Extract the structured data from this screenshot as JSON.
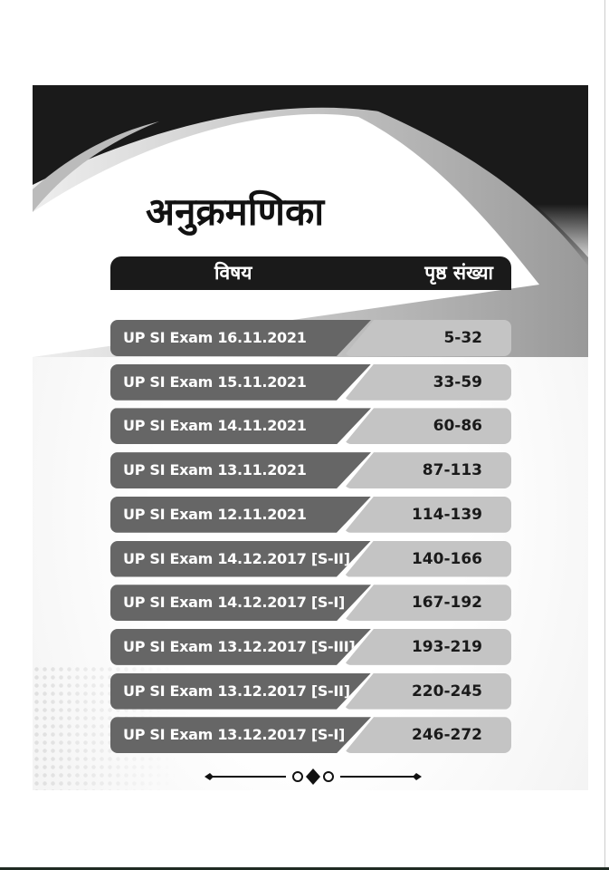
{
  "title": "अनुक्रमणिका",
  "header": {
    "subject": "विषय",
    "pages": "पृष्ठ संख्या"
  },
  "rows": [
    {
      "label": "UP SI Exam 16.11.2021",
      "pages": "5-32"
    },
    {
      "label": "UP SI Exam 15.11.2021",
      "pages": "33-59"
    },
    {
      "label": "UP SI Exam 14.11.2021",
      "pages": "60-86"
    },
    {
      "label": "UP SI Exam 13.11.2021",
      "pages": "87-113"
    },
    {
      "label": "UP SI Exam 12.11.2021",
      "pages": "114-139"
    },
    {
      "label": "UP SI Exam 14.12.2017 [S-II]",
      "pages": "140-166"
    },
    {
      "label": "UP SI Exam 14.12.2017 [S-I]",
      "pages": "167-192"
    },
    {
      "label": "UP SI Exam 13.12.2017 [S-III]",
      "pages": "193-219"
    },
    {
      "label": "UP SI Exam 13.12.2017 [S-II]",
      "pages": "220-245"
    },
    {
      "label": "UP SI Exam 13.12.2017 [S-I]",
      "pages": "246-272"
    }
  ],
  "colors": {
    "header": "#1a1a1a",
    "label_bg": "#666666",
    "pages_bg": "#c4c4c4"
  }
}
